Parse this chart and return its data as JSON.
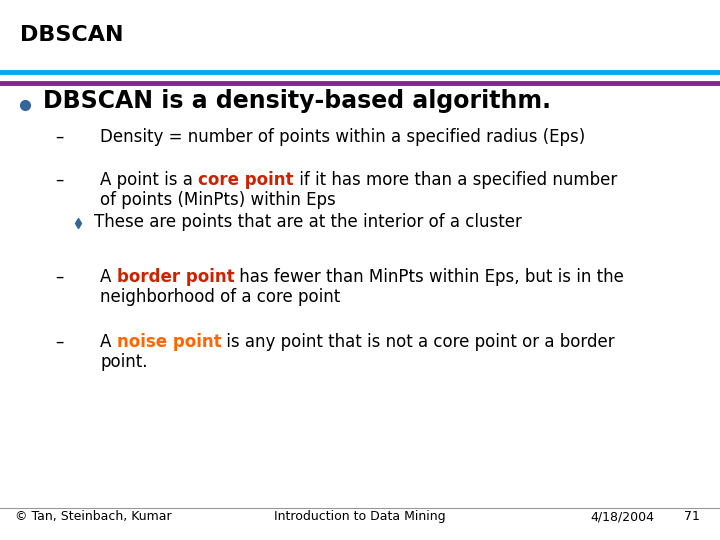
{
  "title": "DBSCAN",
  "title_color": "#000000",
  "title_fontsize": 16,
  "line1_color_cyan": "#00AAEE",
  "line1_color_purple": "#882299",
  "bg_color": "#FFFFFF",
  "bullet_color": "#336699",
  "bullet_text": "DBSCAN is a density-based algorithm.",
  "bullet_fontsize": 17,
  "sub1_text": "Density = number of points within a specified radius (Eps)",
  "sub2a_text": "A point is a ",
  "sub2b_text": "core point",
  "sub2b_color": "#CC2200",
  "sub2c_text": " if it has more than a specified number",
  "sub2_line2": "of points (MinPts) within Eps",
  "sub2sub_text": "These are points that are at the interior of a cluster",
  "sub2sub_bullet_color": "#336699",
  "sub3a_text": "A ",
  "sub3b_text": "border point",
  "sub3b_color": "#CC2200",
  "sub3c_text": " has fewer than MinPts within Eps, but is in the",
  "sub3_line2": "neighborhood of a core point",
  "sub4a_text": "A ",
  "sub4b_text": "noise point",
  "sub4b_color": "#FF6600",
  "sub4c_text": " is any point that is not a core point or a border",
  "sub4_line2": "point.",
  "footer_left": "© Tan, Steinbach, Kumar",
  "footer_center": "Introduction to Data Mining",
  "footer_right": "4/18/2004",
  "footer_page": "71",
  "text_color": "#000000",
  "sub_fontsize": 12,
  "footer_fontsize": 9
}
